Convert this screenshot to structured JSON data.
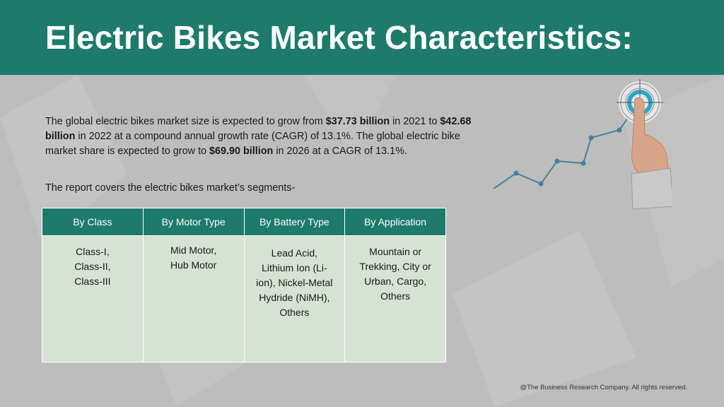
{
  "header": {
    "title": "Electric Bikes Market Characteristics:"
  },
  "intro": {
    "p1": "The global electric bikes market size is expected to grow from ",
    "v1": "$37.73 billion",
    "p2": " in 2021 to ",
    "v2": "$42.68 billion",
    "p3": " in 2022 at a compound annual growth rate (CAGR) of 13.1%. The global electric bike market share is expected to grow to ",
    "v3": "$69.90 billion",
    "p4": " in 2026 at a CAGR of 13.1%."
  },
  "segments_text": "The report covers the electric bikes market’s segments-",
  "table": {
    "headers": [
      "By Class",
      "By Motor Type",
      "By Battery Type",
      "By Application"
    ],
    "cells": [
      "Class-I, Class-II, Class-III",
      "Mid Motor, Hub Motor",
      "Lead Acid, Lithium Ion (Li-ion), Nickel-Metal Hydride (NiMH), Others",
      "Mountain or Trekking, City or Urban, Cargo, Others"
    ]
  },
  "illustration": {
    "icons": [
      "growth-line-chart-icon",
      "target-icon",
      "pointing-hand-icon"
    ],
    "colors": {
      "line": "#4a7f9a",
      "target": "#2aa7c4",
      "brand": "#1e7b6c"
    }
  },
  "footer": {
    "copyright": "@The Business Research Company. All rights reserved."
  }
}
